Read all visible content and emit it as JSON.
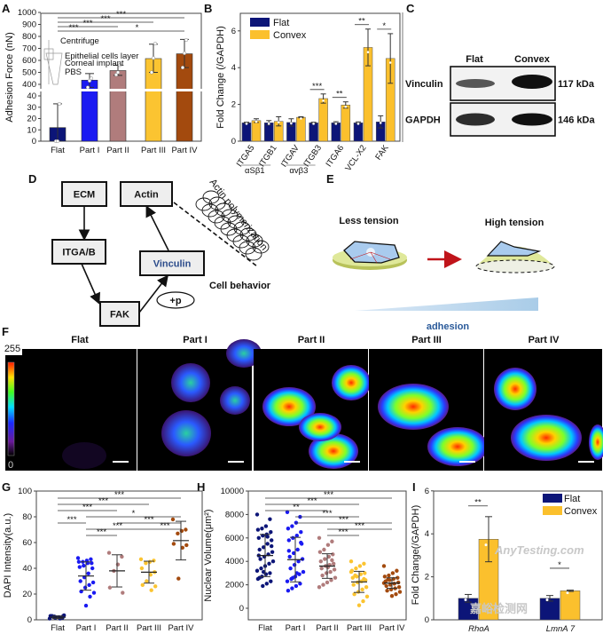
{
  "panel_letters": {
    "A": "A",
    "B": "B",
    "C": "C",
    "D": "D",
    "E": "E",
    "F": "F",
    "G": "G",
    "H": "H",
    "I": "I"
  },
  "colors": {
    "flat": "#0c1578",
    "part1": "#1a1af2",
    "part2": "#b07c7c",
    "part3": "#fbc431",
    "part4": "#a34a0e",
    "convex": "#fbc02d",
    "arrow_red": "#c0141a",
    "adhesion_blue": "#2a5a9a"
  },
  "chart_data": [
    {
      "id": "A",
      "type": "bar",
      "ylabel": "Adhesion Force (nN)",
      "categories": [
        "Flat",
        "Part I",
        "Part II",
        "Part III",
        "Part IV"
      ],
      "values": [
        12,
        435,
        515,
        615,
        655
      ],
      "errors_upper": [
        33,
        490,
        560,
        735,
        775
      ],
      "errors_lower": [
        0,
        375,
        475,
        500,
        540
      ],
      "points": [
        [
          0,
          0,
          33
        ],
        [
          375,
          430,
          450
        ],
        [
          480,
          500,
          560
        ],
        [
          500,
          620,
          740
        ],
        [
          540,
          660,
          770
        ]
      ],
      "yaxis_broken": true,
      "ylim_lower": [
        0,
        45
      ],
      "yticks_lower": [
        "0",
        "10",
        "20",
        "30",
        "40"
      ],
      "ylim_upper": [
        350,
        1000
      ],
      "yticks_upper": [
        "400",
        "500",
        "600",
        "700",
        "800",
        "900",
        "1000"
      ],
      "significance": [
        [
          0,
          4,
          "***"
        ],
        [
          0,
          3,
          "***"
        ],
        [
          0,
          2,
          "***"
        ],
        [
          0,
          1,
          "***"
        ],
        [
          1,
          4,
          "*"
        ]
      ],
      "inset_labels": [
        "Centrifuge",
        "Epithelial cells layer",
        "Corneal implant",
        "PBS"
      ]
    },
    {
      "id": "B",
      "type": "bar",
      "ylabel": "Fold Change (/GAPDH)",
      "categories": [
        "ITGA5",
        "ITGB1",
        "ITGAV",
        "ITGB3",
        "ITGA6",
        "VCL-X2",
        "FAK"
      ],
      "group_labels": [
        [
          "αSβ1",
          0,
          1
        ],
        [
          "αvβ3",
          2,
          3
        ]
      ],
      "series": [
        {
          "name": "Flat",
          "values": [
            1.0,
            1.0,
            1.02,
            1.0,
            1.0,
            1.0,
            1.05
          ],
          "errors": [
            0.03,
            0.12,
            0.2,
            0.03,
            0.06,
            0.05,
            0.33
          ]
        },
        {
          "name": "Convex",
          "values": [
            1.12,
            1.08,
            1.3,
            2.32,
            1.97,
            5.1,
            4.5
          ],
          "errors": [
            0.1,
            0.25,
            0.03,
            0.25,
            0.17,
            1.0,
            1.35
          ]
        }
      ],
      "ylim": [
        0,
        7
      ],
      "yticks": [
        "0",
        "2",
        "4",
        "6"
      ],
      "significance": [
        [
          3,
          "***"
        ],
        [
          4,
          "**"
        ],
        [
          5,
          "**"
        ],
        [
          6,
          "*"
        ]
      ],
      "legend": "top-left"
    },
    {
      "id": "G",
      "type": "scatter",
      "ylabel": "DAPI Intensity(a.u.)",
      "categories": [
        "Flat",
        "Part I",
        "Part II",
        "Part III",
        "Part IV"
      ],
      "points": [
        [
          1,
          1.5,
          2,
          2.5,
          3,
          3,
          2,
          1.5,
          2.5,
          3.5,
          1,
          2,
          3
        ],
        [
          48,
          47,
          46,
          45,
          45,
          44,
          44,
          42,
          41,
          40,
          36,
          33,
          30,
          29,
          27,
          25,
          22,
          21,
          18,
          11
        ],
        [
          52,
          49,
          43,
          38,
          25,
          21
        ],
        [
          47,
          46,
          45,
          44,
          40,
          37,
          35,
          30,
          27,
          26,
          23
        ],
        [
          78,
          70,
          69,
          67,
          59,
          58,
          56,
          32
        ]
      ],
      "mean": [
        2,
        34,
        38,
        37,
        61.5
      ],
      "sd": [
        1,
        11,
        12.5,
        8.5,
        15
      ],
      "ylim": [
        0,
        100
      ],
      "yticks": [
        "0",
        "20",
        "40",
        "60",
        "80",
        "100"
      ],
      "significance": [
        [
          0,
          4,
          "***"
        ],
        [
          0,
          3,
          "***"
        ],
        [
          0,
          2,
          "***"
        ],
        [
          1,
          4,
          "*"
        ],
        [
          0,
          1,
          "***"
        ],
        [
          2,
          4,
          "***"
        ],
        [
          1,
          3,
          "***"
        ],
        [
          3,
          4,
          "***"
        ],
        [
          1,
          2,
          "***"
        ]
      ]
    },
    {
      "id": "H",
      "type": "scatter",
      "ylabel": "Nuclear Volume(μm²)",
      "categories": [
        "Flat",
        "Part I",
        "Part II",
        "Part III",
        "Part IV"
      ],
      "points": [
        [
          8000,
          7600,
          7000,
          6800,
          6700,
          6500,
          6300,
          6200,
          6000,
          5800,
          5500,
          5200,
          5000,
          4800,
          4600,
          4400,
          4200,
          4000,
          3800,
          3600,
          3400,
          3200,
          3000,
          2900,
          2700,
          2500,
          2300,
          2100,
          1900,
          4500,
          5300,
          6100,
          3100,
          2600
        ],
        [
          8200,
          7800,
          7300,
          7000,
          6800,
          6500,
          6200,
          6000,
          5800,
          5500,
          5000,
          4700,
          4400,
          4200,
          4000,
          3700,
          3400,
          3100,
          2900,
          2700,
          2500,
          2300,
          2100,
          1900,
          1700,
          1500,
          5600,
          3000,
          2600,
          4900
        ],
        [
          6000,
          5700,
          5400,
          5000,
          4800,
          4600,
          4400,
          4200,
          4000,
          3800,
          3700,
          3600,
          3400,
          3300,
          3100,
          3000,
          2800,
          2600,
          2400,
          2200,
          2000,
          1800,
          4100,
          3500
        ],
        [
          4000,
          3800,
          3600,
          3400,
          3200,
          3000,
          2900,
          2700,
          2600,
          2400,
          2300,
          2200,
          2000,
          1800,
          1600,
          1400,
          1200,
          1000,
          600,
          250,
          2800,
          3100,
          2500
        ],
        [
          3600,
          3200,
          3000,
          2800,
          2700,
          2600,
          2500,
          2400,
          2300,
          2200,
          2100,
          2000,
          1900,
          1800,
          1700,
          1600,
          1500,
          1400,
          1200,
          1050,
          2450,
          2150
        ]
      ],
      "mean": [
        4500,
        4150,
        3600,
        2250,
        2150
      ],
      "sd": [
        1800,
        1900,
        1050,
        900,
        450
      ],
      "ylim": [
        -1000,
        10000
      ],
      "yticks": [
        "0",
        "2000",
        "4000",
        "6000",
        "8000",
        "10000"
      ],
      "significance": [
        [
          0,
          4,
          "***"
        ],
        [
          0,
          3,
          "***"
        ],
        [
          0,
          2,
          "**"
        ],
        [
          1,
          3,
          "***"
        ],
        [
          1,
          4,
          "***"
        ],
        [
          2,
          4,
          "***"
        ],
        [
          2,
          3,
          "***"
        ]
      ]
    },
    {
      "id": "I",
      "type": "bar",
      "ylabel": "Fold Change(/GAPDH)",
      "categories": [
        "RhoA",
        "LmnA 7"
      ],
      "series": [
        {
          "name": "Flat",
          "values": [
            1.0,
            1.0
          ],
          "errors": [
            0.18,
            0.13
          ]
        },
        {
          "name": "Convex",
          "values": [
            3.75,
            1.35
          ],
          "errors": [
            1.05,
            0.03
          ]
        }
      ],
      "ylim": [
        0,
        6
      ],
      "yticks": [
        "0",
        "2",
        "4",
        "6"
      ],
      "significance": [
        [
          0,
          "**"
        ],
        [
          1,
          "*"
        ]
      ],
      "legend": "top-right"
    }
  ],
  "western_blot": {
    "columns": [
      "Flat",
      "Convex"
    ],
    "rows": [
      {
        "protein": "Vinculin",
        "size": "117 kDa"
      },
      {
        "protein": "GAPDH",
        "size": "146 kDa"
      }
    ]
  },
  "pathway": {
    "nodes": {
      "ecm": "ECM",
      "actin": "Actin",
      "itga": "ITGA/B",
      "vinculin": "Vinculin",
      "fak": "FAK"
    },
    "phospho": "+p",
    "actin_polymerization": "Actin polymerization",
    "cell_behavior": "Cell behavior"
  },
  "tension": {
    "left": "Less tension",
    "right": "High tension",
    "gradient_label": "adhesion"
  },
  "fluorescence": {
    "panels": [
      "Flat",
      "Part I",
      "Part II",
      "Part III",
      "Part IV"
    ],
    "colorbar_max": "255",
    "colorbar_min": "0"
  },
  "watermark": {
    "cn": "嘉峪检测网",
    "en": "AnyTesting.com"
  }
}
